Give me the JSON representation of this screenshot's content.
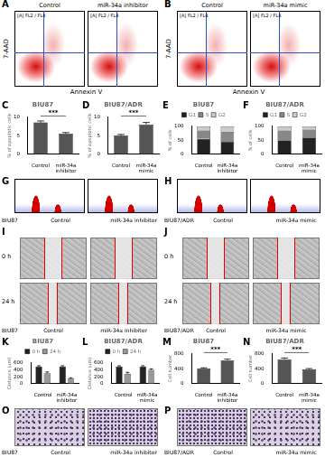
{
  "flow_cytometry": [
    {
      "panel": "A",
      "ylabel": "7-AAD",
      "xlabel": "Annexin V",
      "plots": [
        {
          "title": "Control",
          "label": "[A] FL2 / FL4"
        },
        {
          "title": "miR-34a inhibitor",
          "label": "[A] FL2 / FL4"
        }
      ]
    },
    {
      "panel": "B",
      "ylabel": "7-AAD",
      "xlabel": "Annexin V",
      "plots": [
        {
          "title": "Control",
          "label": "[A] FL2 / FL4"
        },
        {
          "title": "miR-34a mimic",
          "label": "[A] FL2 / FL4"
        }
      ]
    }
  ],
  "chart_data": [
    {
      "panel": "C",
      "type": "bar",
      "title": "BIU87",
      "ylabel": "% of apoptotic cells",
      "categories": [
        "Control",
        "miR-34a inhibitor"
      ],
      "values": [
        8.5,
        5.5
      ],
      "errors": [
        0.4,
        0.3
      ],
      "color": "#555555",
      "ylim": [
        0,
        10
      ],
      "yticks": [
        0,
        5,
        10
      ],
      "grid": false,
      "annotation": "***"
    },
    {
      "panel": "D",
      "type": "bar",
      "title": "BIU87/ADR",
      "ylabel": "% of apoptotic cells",
      "categories": [
        "Control",
        "miR-34a mimic"
      ],
      "values": [
        5,
        8
      ],
      "errors": [
        0.3,
        0.5
      ],
      "color": "#555555",
      "ylim": [
        0,
        10
      ],
      "yticks": [
        0,
        5,
        10
      ],
      "grid": false,
      "annotation": "***"
    },
    {
      "panel": "E",
      "type": "bar",
      "stacked": true,
      "title": "BIU87",
      "ylabel": "% of cells",
      "categories": [
        "Control",
        "miR-34a inhibitor"
      ],
      "series": [
        {
          "name": "G1",
          "color": "#222222",
          "values": [
            55,
            45
          ]
        },
        {
          "name": "S",
          "color": "#888888",
          "values": [
            30,
            35
          ]
        },
        {
          "name": "G2",
          "color": "#cccccc",
          "values": [
            15,
            20
          ]
        }
      ],
      "ylim": [
        0,
        100
      ],
      "yticks": [
        0,
        50,
        100
      ],
      "grid": false,
      "legend": "top"
    },
    {
      "panel": "F",
      "type": "bar",
      "stacked": true,
      "title": "BIU87/ADR",
      "ylabel": "% of cells",
      "categories": [
        "Control",
        "miR-34a mimic"
      ],
      "series": [
        {
          "name": "G1",
          "color": "#222222",
          "values": [
            50,
            60
          ]
        },
        {
          "name": "S",
          "color": "#888888",
          "values": [
            35,
            28
          ]
        },
        {
          "name": "G2",
          "color": "#cccccc",
          "values": [
            15,
            12
          ]
        }
      ],
      "ylim": [
        0,
        100
      ],
      "yticks": [
        0,
        50,
        100
      ],
      "grid": false,
      "legend": "top"
    },
    {
      "panel": "K",
      "type": "bar",
      "title": "BIU87",
      "ylabel": "Distance (μm)",
      "categories": [
        "Control",
        "miR-34a inhibitor"
      ],
      "series": [
        {
          "name": "0 h",
          "color": "#222222",
          "values": [
            500,
            500
          ],
          "errors": [
            20,
            20
          ]
        },
        {
          "name": "24 h",
          "color": "#999999",
          "values": [
            300,
            150
          ],
          "errors": [
            40,
            20
          ]
        }
      ],
      "ylim": [
        0,
        600
      ],
      "yticks": [
        0,
        200,
        400,
        600
      ],
      "grid": false,
      "legend": "top"
    },
    {
      "panel": "L",
      "type": "bar",
      "title": "BIU87/ADR",
      "ylabel": "Distance (μm)",
      "categories": [
        "Control",
        "miR-34a mimic"
      ],
      "series": [
        {
          "name": "0 h",
          "color": "#222222",
          "values": [
            500,
            500
          ],
          "errors": [
            20,
            20
          ]
        },
        {
          "name": "24 h",
          "color": "#999999",
          "values": [
            280,
            400
          ],
          "errors": [
            50,
            30
          ]
        }
      ],
      "ylim": [
        0,
        600
      ],
      "yticks": [
        0,
        200,
        400,
        600
      ],
      "grid": false,
      "legend": "top"
    },
    {
      "panel": "M",
      "type": "bar",
      "title": "BIU87",
      "ylabel": "Cell number",
      "categories": [
        "Control",
        "miR-34a inhibitor"
      ],
      "values": [
        400,
        620
      ],
      "errors": [
        20,
        30
      ],
      "color": "#555555",
      "ylim": [
        0,
        800
      ],
      "yticks": [
        0,
        400,
        800
      ],
      "grid": false,
      "annotation": "***"
    },
    {
      "panel": "N",
      "type": "bar",
      "title": "BIU87/ADR",
      "ylabel": "Cell number",
      "categories": [
        "Control",
        "miR-34a mimic"
      ],
      "values": [
        650,
        380
      ],
      "errors": [
        30,
        20
      ],
      "color": "#555555",
      "ylim": [
        0,
        800
      ],
      "yticks": [
        0,
        400,
        800
      ],
      "grid": false,
      "annotation": "***"
    }
  ],
  "cell_cycle_histograms": [
    {
      "panel": "G",
      "cell_line": "BIU87",
      "conditions": [
        "Control",
        "miR-34a inhibitor"
      ]
    },
    {
      "panel": "H",
      "cell_line": "BIU87/ADR",
      "conditions": [
        "Control",
        "miR-34a mimic"
      ]
    }
  ],
  "wound_healing": [
    {
      "panel": "I",
      "cell_line": "BIU87",
      "conditions": [
        "Control",
        "miR-34a inhibitor"
      ],
      "times": [
        "0 h",
        "24 h"
      ]
    },
    {
      "panel": "J",
      "cell_line": "BIU87/ADR",
      "conditions": [
        "Control",
        "miR-34a mimic"
      ],
      "times": [
        "0 h",
        "24 h"
      ]
    }
  ],
  "transwell": [
    {
      "panel": "O",
      "cell_line": "BIU87",
      "conditions": [
        "Control",
        "miR-34a inhibitor"
      ]
    },
    {
      "panel": "P",
      "cell_line": "BIU87/ADR",
      "conditions": [
        "Control",
        "miR-34a mimic"
      ]
    }
  ]
}
